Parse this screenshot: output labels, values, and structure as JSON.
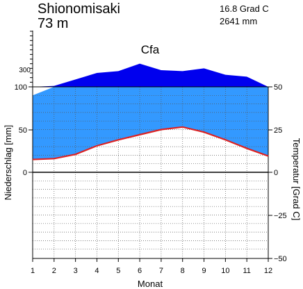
{
  "header": {
    "station": "Shionomisaki",
    "elevation": "73 m",
    "mean_temperature": "16.8 Grad C",
    "annual_precipitation": "2641 mm"
  },
  "chart_data": {
    "type": "climate-diagram",
    "climate_class": "Cfa",
    "xlabel": "Monat",
    "ylabel_left": "Niederschlag [mm]",
    "ylabel_right": "Temperatur [Grad C]",
    "x_ticks": [
      "1",
      "2",
      "3",
      "4",
      "5",
      "6",
      "7",
      "8",
      "9",
      "10",
      "11",
      "12"
    ],
    "left_ticks": [
      "100",
      "50",
      "0"
    ],
    "right_ticks": [
      "50",
      "25",
      "0",
      "−25",
      "−50"
    ],
    "upper_tick_label": "300",
    "precipitation_mm": [
      90,
      110,
      180,
      250,
      270,
      350,
      280,
      270,
      300,
      230,
      210,
      100
    ],
    "temperature_c": [
      7.5,
      8.0,
      10.5,
      15.5,
      19.0,
      22.0,
      25.0,
      26.5,
      23.5,
      19.0,
      14.0,
      9.5
    ],
    "ylim_precip_mm": [
      0,
      100
    ],
    "ylim_temp_c": [
      -50,
      50
    ],
    "grid": true,
    "colors": {
      "humid_fill": "#3399ff",
      "perhumid_fill": "#0000ee",
      "temperature_line": "#dd2222",
      "grid": "#555555"
    }
  }
}
